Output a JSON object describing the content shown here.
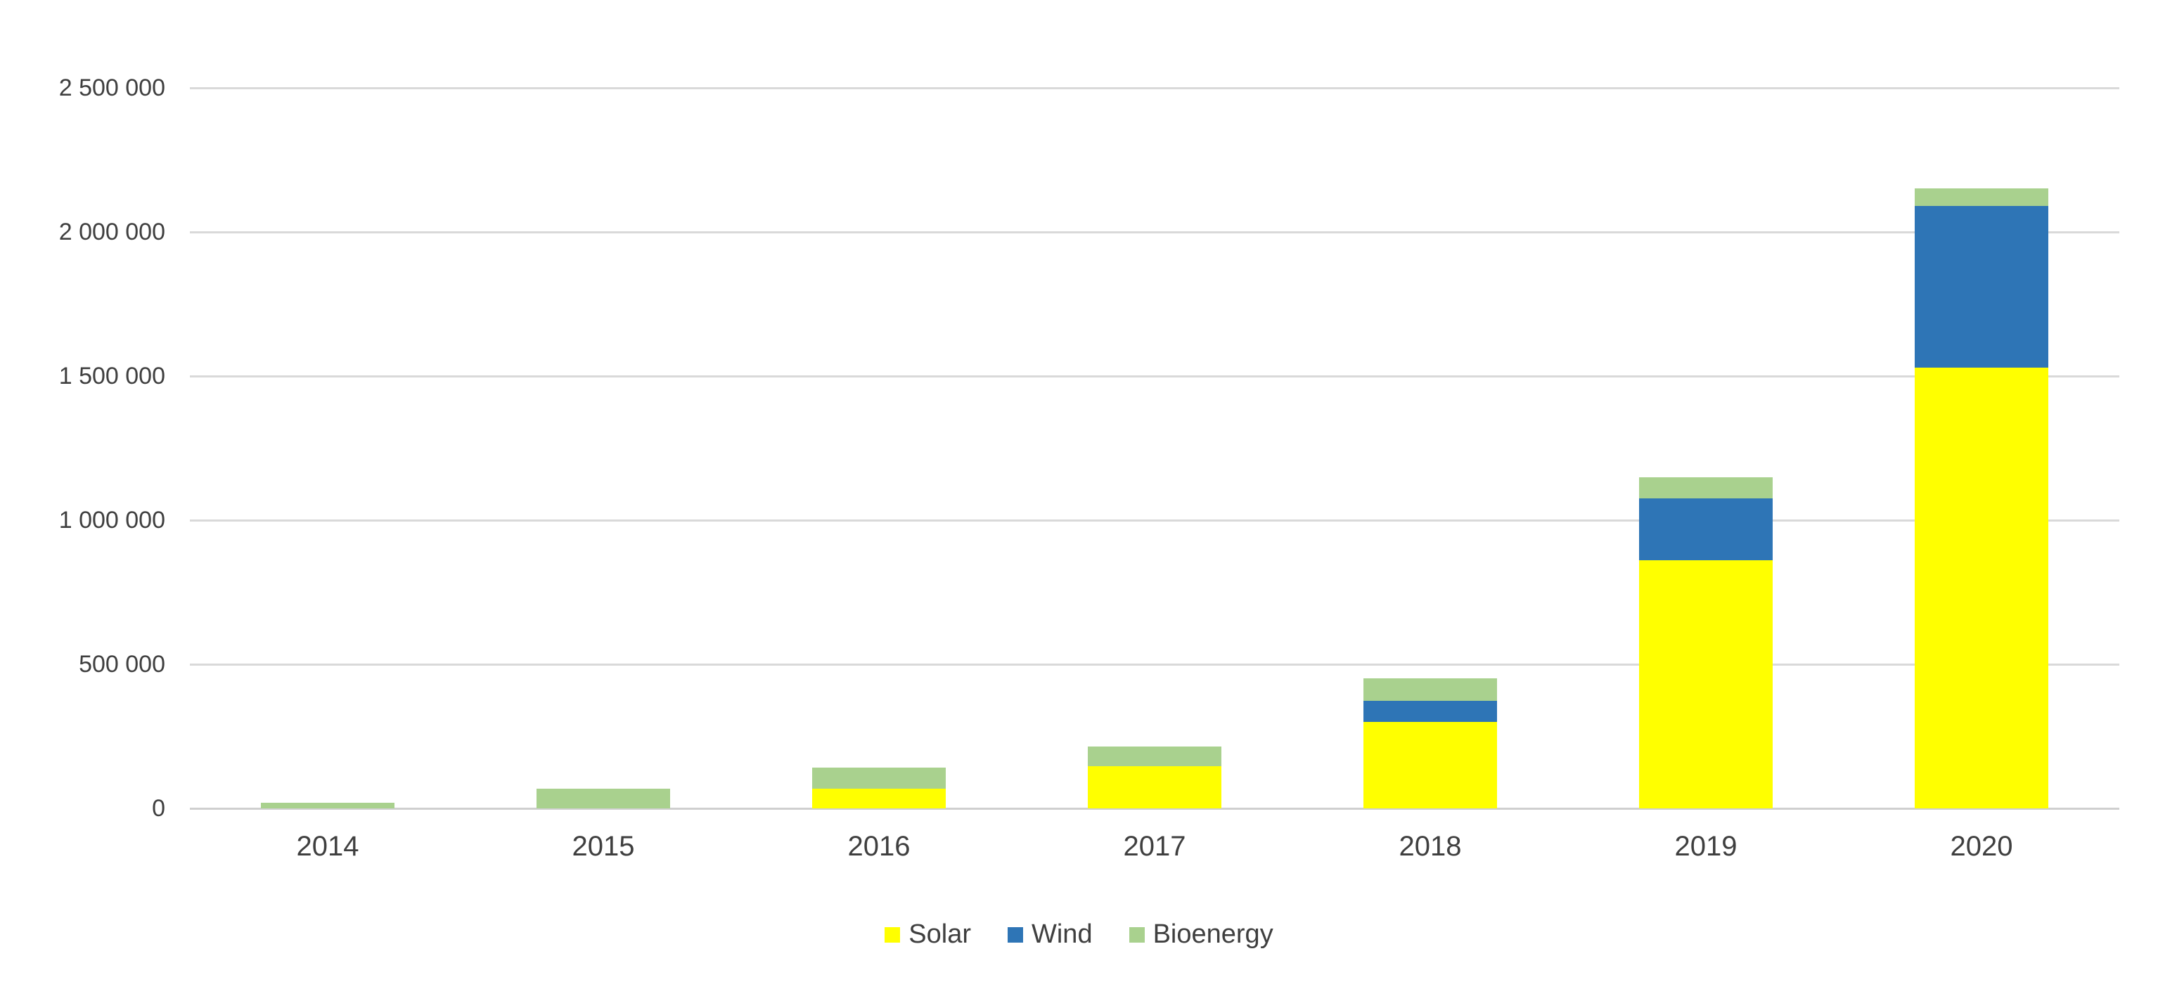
{
  "chart_data": {
    "type": "bar",
    "stacked": true,
    "title": "",
    "xlabel": "",
    "ylabel": "",
    "categories": [
      "2014",
      "2015",
      "2016",
      "2017",
      "2018",
      "2019",
      "2020"
    ],
    "series": [
      {
        "name": "Solar",
        "color": "#FFFF00",
        "values": [
          0,
          0,
          68000,
          146000,
          300000,
          860000,
          1530000
        ]
      },
      {
        "name": "Wind",
        "color": "#2E75B6",
        "values": [
          0,
          0,
          0,
          0,
          73000,
          215000,
          560000
        ]
      },
      {
        "name": "Bioenergy",
        "color": "#A9D18E",
        "values": [
          20000,
          68000,
          73000,
          68000,
          78000,
          73000,
          61000
        ]
      }
    ],
    "ylim": [
      0,
      2500000
    ],
    "ytick_interval": 500000,
    "ytick_labels": [
      "0",
      "500 000",
      "1 000 000",
      "1 500 000",
      "2 000 000",
      "2 500 000"
    ],
    "grid": true,
    "legend_position": "bottom",
    "style": {
      "gridline_color": "#D9D9D9",
      "baseline_color": "#CFCFCF",
      "axis_text_color": "#3F3F3F",
      "background_color": "#FFFFFF"
    }
  }
}
